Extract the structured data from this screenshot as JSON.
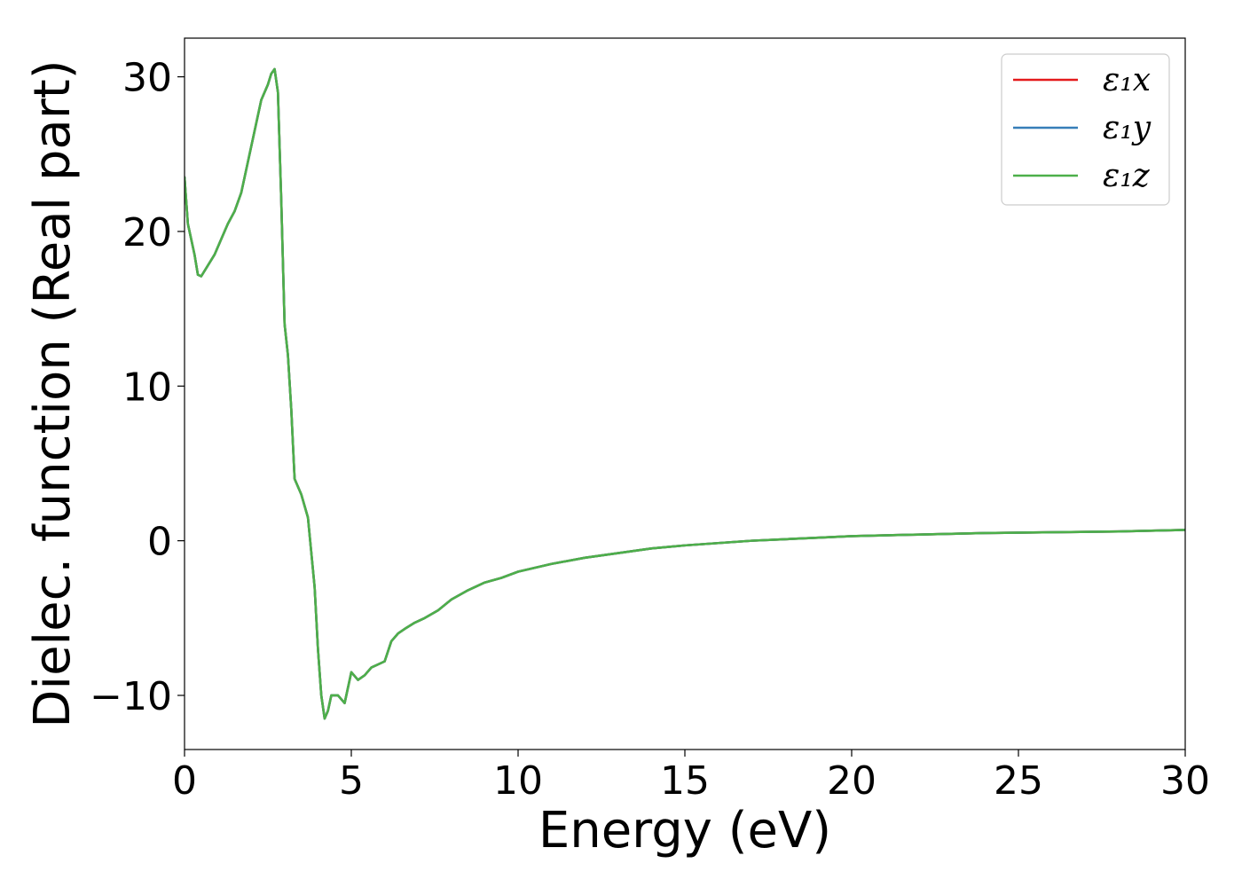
{
  "chart_data": {
    "type": "line",
    "xlabel": "Energy (eV)",
    "ylabel": "Dielec. function (Real part)",
    "xlim": [
      0,
      30
    ],
    "ylim": [
      -13.5,
      32.5
    ],
    "xticks": [
      0,
      5,
      10,
      15,
      20,
      25,
      30
    ],
    "xtick_labels": [
      "0",
      "5",
      "10",
      "15",
      "20",
      "25",
      "30"
    ],
    "yticks": [
      -10,
      0,
      10,
      20,
      30
    ],
    "ytick_labels": [
      "−10",
      "0",
      "10",
      "20",
      "30"
    ],
    "grid": false,
    "legend_position": "top-right",
    "x": [
      0,
      0.1,
      0.2,
      0.3,
      0.4,
      0.5,
      0.7,
      0.9,
      1.1,
      1.3,
      1.5,
      1.7,
      1.9,
      2.1,
      2.3,
      2.5,
      2.6,
      2.7,
      2.8,
      2.9,
      3.0,
      3.1,
      3.2,
      3.3,
      3.5,
      3.7,
      3.9,
      4.0,
      4.1,
      4.2,
      4.3,
      4.4,
      4.6,
      4.8,
      5.0,
      5.2,
      5.4,
      5.6,
      6.0,
      6.2,
      6.4,
      6.6,
      6.9,
      7.2,
      7.6,
      8.0,
      8.5,
      9.0,
      9.5,
      10.0,
      11.0,
      12.0,
      13.0,
      14.0,
      15.0,
      16.0,
      17.0,
      18.0,
      19.0,
      20.0,
      22.0,
      24.0,
      26.0,
      28.0,
      30.0
    ],
    "series": [
      {
        "name": "ε₁x",
        "color": "#e41a1c",
        "values": [
          23.5,
          20.5,
          19.5,
          18.5,
          17.2,
          17.1,
          17.8,
          18.5,
          19.5,
          20.5,
          21.3,
          22.5,
          24.5,
          26.5,
          28.5,
          29.5,
          30.2,
          30.5,
          29.0,
          22.0,
          14.0,
          12.0,
          8.5,
          4.0,
          3.0,
          1.5,
          -3.0,
          -7.0,
          -10.0,
          -11.5,
          -11.0,
          -10.0,
          -10.0,
          -10.5,
          -8.5,
          -9.0,
          -8.7,
          -8.2,
          -7.8,
          -6.5,
          -6.0,
          -5.7,
          -5.3,
          -5.0,
          -4.5,
          -3.8,
          -3.2,
          -2.7,
          -2.4,
          -2.0,
          -1.5,
          -1.1,
          -0.8,
          -0.5,
          -0.3,
          -0.15,
          0.0,
          0.1,
          0.2,
          0.3,
          0.4,
          0.5,
          0.55,
          0.6,
          0.7
        ]
      },
      {
        "name": "ε₁y",
        "color": "#377eb8",
        "values": [
          23.5,
          20.5,
          19.5,
          18.5,
          17.2,
          17.1,
          17.8,
          18.5,
          19.5,
          20.5,
          21.3,
          22.5,
          24.5,
          26.5,
          28.5,
          29.5,
          30.2,
          30.5,
          29.0,
          22.0,
          14.0,
          12.0,
          8.5,
          4.0,
          3.0,
          1.5,
          -3.0,
          -7.0,
          -10.0,
          -11.5,
          -11.0,
          -10.0,
          -10.0,
          -10.5,
          -8.5,
          -9.0,
          -8.7,
          -8.2,
          -7.8,
          -6.5,
          -6.0,
          -5.7,
          -5.3,
          -5.0,
          -4.5,
          -3.8,
          -3.2,
          -2.7,
          -2.4,
          -2.0,
          -1.5,
          -1.1,
          -0.8,
          -0.5,
          -0.3,
          -0.15,
          0.0,
          0.1,
          0.2,
          0.3,
          0.4,
          0.5,
          0.55,
          0.6,
          0.7
        ]
      },
      {
        "name": "ε₁z",
        "color": "#4daf4a",
        "values": [
          23.5,
          20.5,
          19.5,
          18.5,
          17.2,
          17.1,
          17.8,
          18.5,
          19.5,
          20.5,
          21.3,
          22.5,
          24.5,
          26.5,
          28.5,
          29.5,
          30.2,
          30.5,
          29.0,
          22.0,
          14.0,
          12.0,
          8.5,
          4.0,
          3.0,
          1.5,
          -3.0,
          -7.0,
          -10.0,
          -11.5,
          -11.0,
          -10.0,
          -10.0,
          -10.5,
          -8.5,
          -9.0,
          -8.7,
          -8.2,
          -7.8,
          -6.5,
          -6.0,
          -5.7,
          -5.3,
          -5.0,
          -4.5,
          -3.8,
          -3.2,
          -2.7,
          -2.4,
          -2.0,
          -1.5,
          -1.1,
          -0.8,
          -0.5,
          -0.3,
          -0.15,
          0.0,
          0.1,
          0.2,
          0.3,
          0.4,
          0.5,
          0.55,
          0.6,
          0.7
        ]
      }
    ]
  }
}
